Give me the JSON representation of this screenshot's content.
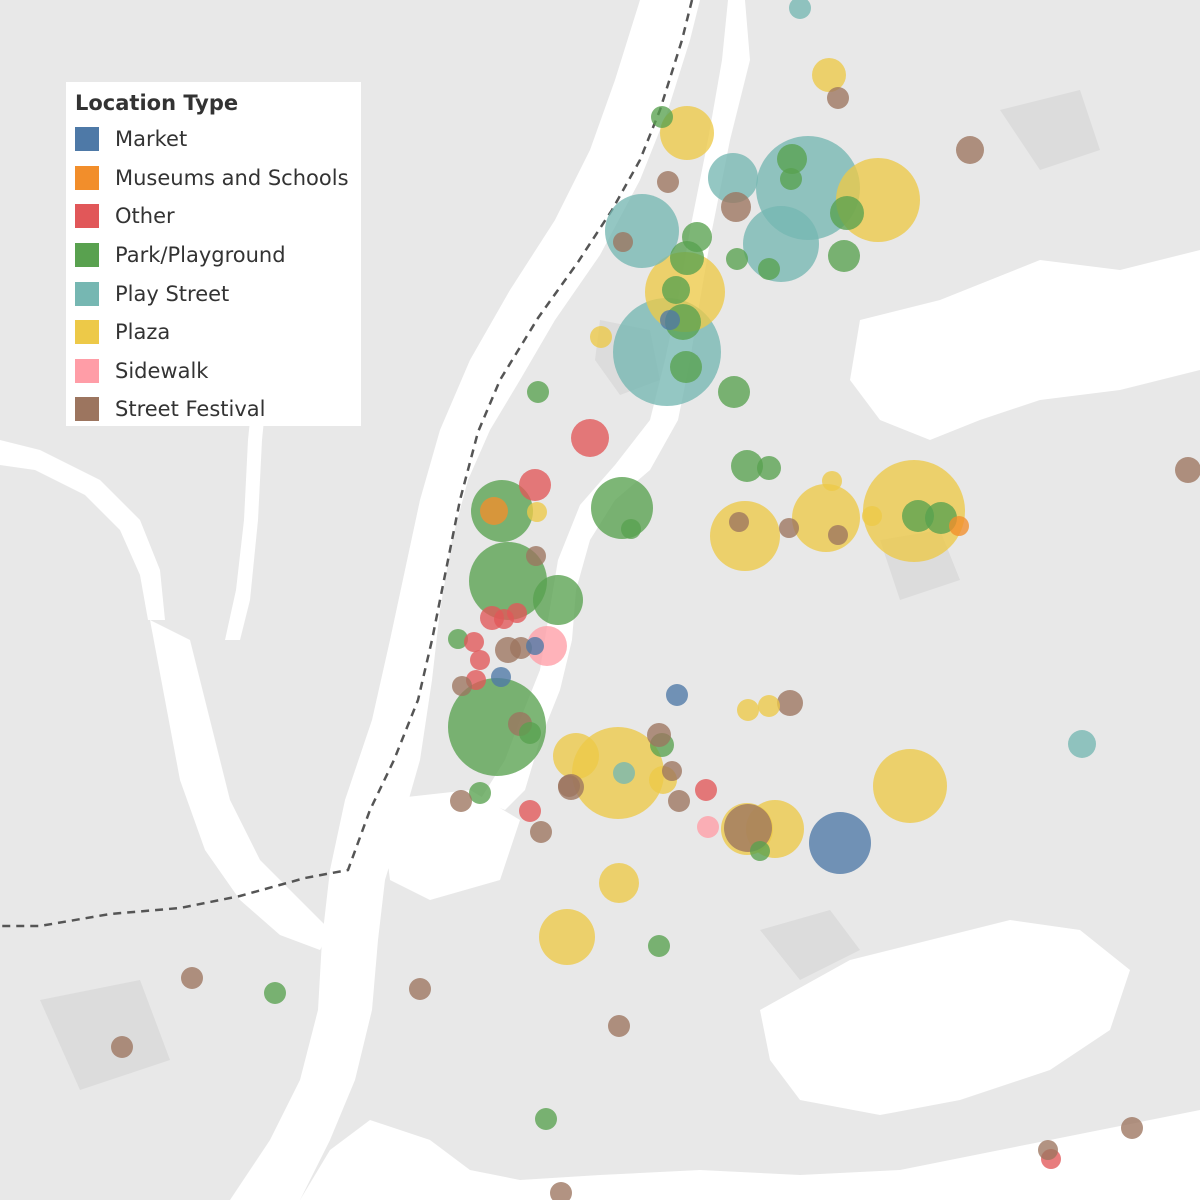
{
  "legend": {
    "title": "Location Type",
    "items": [
      {
        "key": "market",
        "label": "Market",
        "color": "#4e79a7"
      },
      {
        "key": "museums",
        "label": "Museums and Schools",
        "color": "#f28e2b"
      },
      {
        "key": "other",
        "label": "Other",
        "color": "#e15759"
      },
      {
        "key": "park",
        "label": "Park/Playground",
        "color": "#59a14f"
      },
      {
        "key": "playstreet",
        "label": "Play Street",
        "color": "#76b7b2"
      },
      {
        "key": "plaza",
        "label": "Plaza",
        "color": "#edc948"
      },
      {
        "key": "sidewalk",
        "label": "Sidewalk",
        "color": "#ff9da7"
      },
      {
        "key": "festival",
        "label": "Street Festival",
        "color": "#9c755f"
      }
    ]
  },
  "map_colors": {
    "land": "#e8e8e8",
    "water": "#ffffff",
    "park": "#dcdcdc",
    "boundary": "#555555"
  }
}
